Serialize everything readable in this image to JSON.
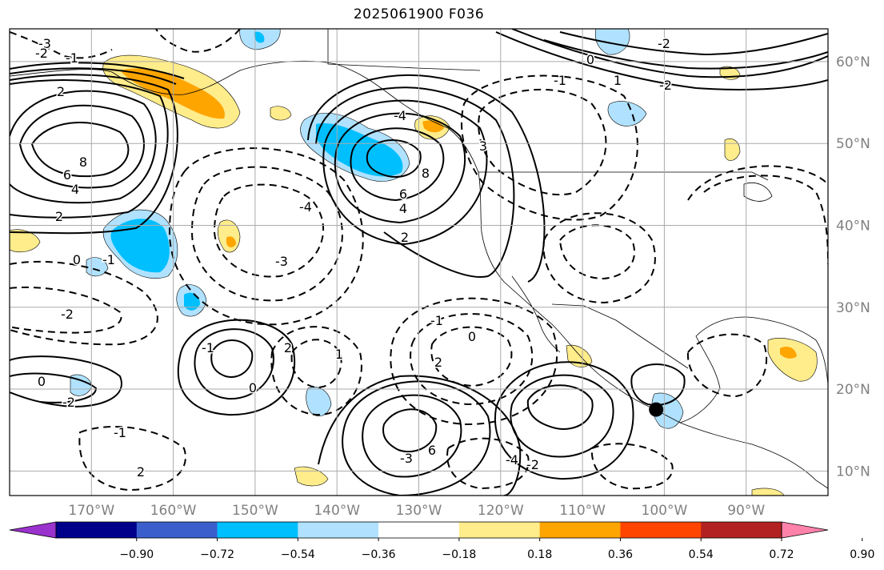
{
  "title": "2025061900 F036",
  "map": {
    "lon_labels": [
      "170°W",
      "160°W",
      "150°W",
      "140°W",
      "130°W",
      "120°W",
      "110°W",
      "100°W",
      "90°W"
    ],
    "lat_labels": [
      "60°N",
      "50°N",
      "40°N",
      "30°N",
      "20°N",
      "10°N"
    ],
    "marker": {
      "lon": -101,
      "lat": 17.5
    },
    "contour_labels": [
      "8",
      "6",
      "4",
      "2",
      "0",
      "-1",
      "-2",
      "-3",
      "-4",
      "8",
      "6",
      "4",
      "2",
      "3",
      "-4",
      "-3",
      "-2",
      "-1",
      "2",
      "0",
      "-2",
      "-1",
      "2",
      "-1",
      "0",
      "2",
      "1",
      "2",
      "-1",
      "0",
      "6",
      "-3",
      "-2",
      "-4",
      "-2",
      "0",
      "1",
      "-2",
      "-1"
    ]
  },
  "colorbar": {
    "colors": [
      "#9a32cd",
      "#00008b",
      "#3a5fcd",
      "#00bfff",
      "#b0e2ff",
      "#ffffff",
      "#ffec8b",
      "#ffa500",
      "#ff4500",
      "#b22222",
      "#ff82ab"
    ],
    "tick_labels": [
      "−0.90",
      "−0.72",
      "−0.54",
      "−0.36",
      "−0.18",
      "0.18",
      "0.36",
      "0.54",
      "0.72",
      "0.90"
    ]
  }
}
